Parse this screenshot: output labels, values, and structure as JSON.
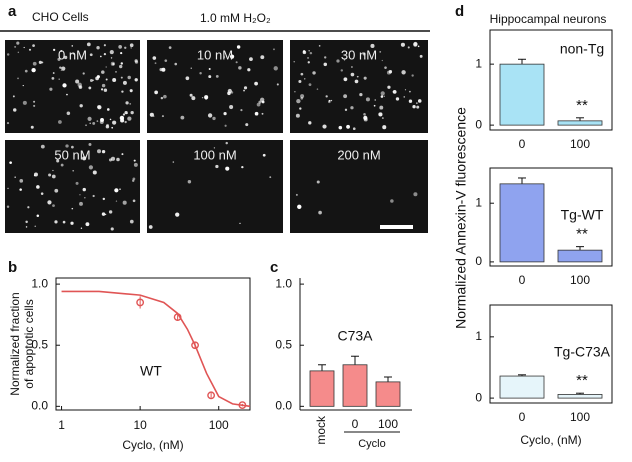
{
  "panel_labels": [
    "a",
    "b",
    "c",
    "d"
  ],
  "panel_a": {
    "cell_line": "CHO Cells",
    "treatment": "1.0 mM H₂O₂",
    "images": [
      "0 nM",
      "10 nM",
      "30 nM",
      "50 nM",
      "100 nM",
      "200 nM"
    ]
  },
  "panel_d": {
    "title": "Hippocampal neurons",
    "ylabel": "Normalized Annexin-V fluorescence",
    "xlabel": "Cyclo, (nM)"
  },
  "chart_data": [
    {
      "type": "scatter",
      "annotation": "WT",
      "ylabel": [
        "Normalized fraction",
        "of apoptotic cells"
      ],
      "xlabel": "Cyclo, (nM)",
      "log_x": true,
      "x": [
        10,
        30,
        50,
        80,
        200
      ],
      "series": [
        {
          "color": "#e05555",
          "values": [
            0.85,
            0.73,
            0.5,
            0.09,
            0.01
          ],
          "errors": [
            0.05,
            0.03,
            0.03,
            0.02,
            0.01
          ]
        }
      ],
      "fit": {
        "x": [
          1,
          3,
          10,
          20,
          30,
          40,
          50,
          70,
          100,
          150,
          250
        ],
        "values": [
          0.94,
          0.94,
          0.91,
          0.85,
          0.76,
          0.63,
          0.5,
          0.27,
          0.08,
          0.02,
          0.0
        ]
      },
      "xlim": [
        0.85,
        250
      ],
      "ylim": [
        -0.03,
        1.05
      ],
      "xticks": [
        1,
        10,
        100
      ],
      "yticks": [
        {
          "value": 0,
          "label": "0.0"
        },
        {
          "value": 0.5,
          "label": "0.5"
        },
        {
          "value": 1,
          "label": "1.0"
        }
      ]
    },
    {
      "type": "bar",
      "annotation": "C73A",
      "categories": [
        "mock",
        "0",
        "100"
      ],
      "group_label": "Cyclo",
      "values": [
        0.29,
        0.34,
        0.2
      ],
      "errors": [
        0.05,
        0.07,
        0.04
      ],
      "color": "#f58b8b",
      "ylim": [
        -0.03,
        1.05
      ],
      "yticks": [
        {
          "value": 0,
          "label": "0.0"
        },
        {
          "value": 0.5,
          "label": "0.5"
        },
        {
          "value": 1,
          "label": "1.0"
        }
      ]
    },
    {
      "type": "bar",
      "annotation": "non-Tg",
      "significance": "**",
      "categories": [
        "0",
        "100"
      ],
      "values": [
        1.0,
        0.07
      ],
      "errors": [
        0.08,
        0.05
      ],
      "color": "#a9e3f5",
      "ylim": [
        -0.08,
        1.56
      ],
      "yticks": [
        0,
        1
      ]
    },
    {
      "type": "bar",
      "annotation": "Tg-WT",
      "significance": "**",
      "categories": [
        "0",
        "100"
      ],
      "values": [
        1.33,
        0.2
      ],
      "errors": [
        0.1,
        0.06
      ],
      "color": "#8fa3ef",
      "ylim": [
        -0.07,
        1.6
      ],
      "yticks": [
        0,
        1
      ]
    },
    {
      "type": "bar",
      "annotation": "Tg-C73A",
      "significance": "**",
      "categories": [
        "0",
        "100"
      ],
      "values": [
        0.36,
        0.06
      ],
      "errors": [
        0.02,
        0.02
      ],
      "color": "#e6f5fa",
      "ylim": [
        -0.08,
        1.52
      ],
      "yticks": [
        0,
        1
      ]
    }
  ]
}
